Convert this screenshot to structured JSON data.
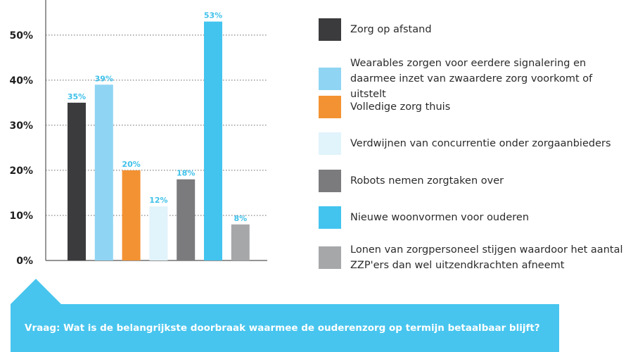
{
  "chart_data": {
    "type": "bar",
    "title": "",
    "xlabel": "",
    "ylabel": "",
    "ylim": [
      0,
      57
    ],
    "yticks": [
      0,
      10,
      20,
      30,
      40,
      50
    ],
    "ytick_labels": [
      "0%",
      "10%",
      "20%",
      "30%",
      "40%",
      "50%"
    ],
    "grid": true,
    "legend_placement": "right",
    "categories": [
      "Zorg op afstand",
      "Wearables zorgen voor eerdere signalering en daarmee inzet van zwaardere zorg voorkomt of uitstelt",
      "Volledige zorg thuis",
      "Verdwijnen van concurrentie onder zorgaanbieders",
      "Robots nemen zorgtaken over",
      "Nieuwe woonvormen voor ouderen",
      "Lonen van zorgpersoneel stijgen waardoor het aantal ZZP'ers dan wel uitzendkrachten afneemt"
    ],
    "values": [
      35,
      39,
      20,
      12,
      18,
      53,
      8
    ],
    "data_labels": [
      "35%",
      "39%",
      "20%",
      "12%",
      "18%",
      "53%",
      "8%"
    ],
    "colors": [
      "#3b3b3d",
      "#8fd5f3",
      "#f39232",
      "#e1f3fb",
      "#7b7b7e",
      "#43c4ef",
      "#a6a7a9"
    ]
  },
  "legend": {
    "items": [
      {
        "label": "Zorg op afstand"
      },
      {
        "label": "Wearables zorgen voor eerdere signalering en daarmee inzet van zwaardere zorg voorkomt of uitstelt"
      },
      {
        "label": "Volledige zorg thuis"
      },
      {
        "label": "Verdwijnen van concurrentie onder zorgaanbieders"
      },
      {
        "label": "Robots nemen zorgtaken over"
      },
      {
        "label": "Nieuwe woonvormen voor ouderen"
      },
      {
        "label": "Lonen van zorgpersoneel stijgen waardoor het aantal ZZP'ers dan wel uitzendkrachten afneemt"
      }
    ]
  },
  "question": {
    "text": "Vraag: Wat is de belangrijkste doorbraak waarmee de ouderenzorg op termijn betaalbaar blijft?"
  },
  "colors": {
    "accent": "#47c5ee",
    "label": "#3fc1ea",
    "axis": "#555555"
  }
}
